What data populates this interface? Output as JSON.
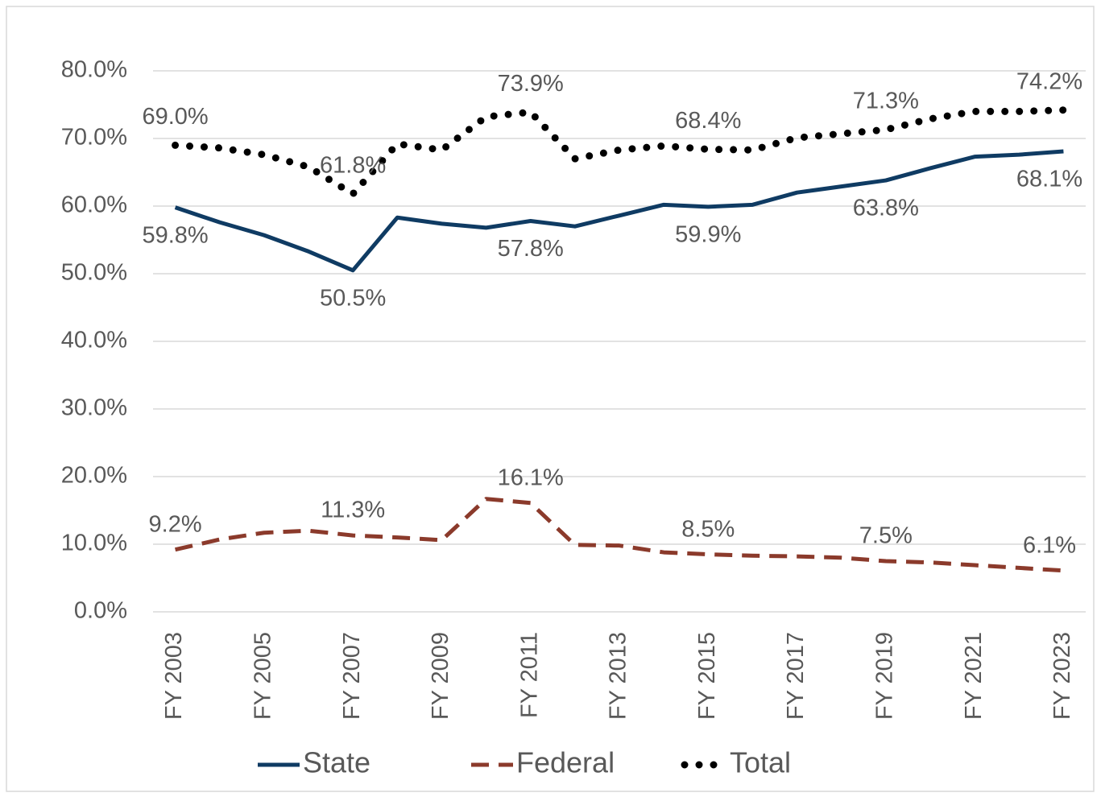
{
  "chart_data": {
    "type": "line",
    "categories": [
      "FY 2003",
      null,
      "FY 2005",
      null,
      "FY 2007",
      null,
      "FY 2009",
      null,
      "FY 2011",
      null,
      "FY 2013",
      null,
      "FY 2015",
      null,
      "FY 2017",
      null,
      "FY 2019",
      null,
      "FY 2021",
      null,
      "FY 2023"
    ],
    "series": [
      {
        "name": "State",
        "color": "#0f3b63",
        "style": "solid",
        "values": [
          59.8,
          57.6,
          55.7,
          53.3,
          50.5,
          58.3,
          57.4,
          56.8,
          57.8,
          57.0,
          58.6,
          60.2,
          59.9,
          60.2,
          62.0,
          62.9,
          63.8,
          65.6,
          67.3,
          67.6,
          68.1
        ],
        "value_labels": [
          "59.8%",
          null,
          null,
          null,
          "50.5%",
          null,
          null,
          null,
          "57.8%",
          null,
          null,
          null,
          "59.9%",
          null,
          null,
          null,
          "63.8%",
          null,
          null,
          null,
          "68.1%"
        ]
      },
      {
        "name": "Federal",
        "color": "#8b3a2b",
        "style": "dashed",
        "values": [
          9.2,
          10.7,
          11.7,
          12.0,
          11.3,
          11.0,
          10.6,
          16.7,
          16.1,
          9.9,
          9.8,
          8.8,
          8.5,
          8.3,
          8.2,
          8.0,
          7.5,
          7.3,
          6.9,
          6.5,
          6.1
        ],
        "value_labels": [
          "9.2%",
          null,
          null,
          null,
          "11.3%",
          null,
          null,
          null,
          "16.1%",
          null,
          null,
          null,
          "8.5%",
          null,
          null,
          null,
          "7.5%",
          null,
          null,
          null,
          "6.1%"
        ]
      },
      {
        "name": "Total",
        "color": "#000000",
        "style": "dotted",
        "values": [
          69.0,
          68.6,
          67.6,
          65.8,
          61.8,
          69.2,
          68.3,
          73.2,
          73.9,
          67.0,
          68.3,
          68.9,
          68.4,
          68.3,
          70.1,
          70.7,
          71.3,
          72.9,
          74.0,
          74.0,
          74.2
        ],
        "value_labels": [
          "69.0%",
          null,
          null,
          null,
          "61.8%",
          null,
          null,
          null,
          "73.9%",
          null,
          null,
          null,
          "68.4%",
          null,
          null,
          null,
          "71.3%",
          null,
          null,
          null,
          "74.2%"
        ]
      }
    ],
    "ylim": [
      0,
      80
    ],
    "yticks": [
      {
        "value": 0,
        "label": "0.0%"
      },
      {
        "value": 10,
        "label": "10.0%"
      },
      {
        "value": 20,
        "label": "20.0%"
      },
      {
        "value": 30,
        "label": "30.0%"
      },
      {
        "value": 40,
        "label": "40.0%"
      },
      {
        "value": 50,
        "label": "50.0%"
      },
      {
        "value": 60,
        "label": "60.0%"
      },
      {
        "value": 70,
        "label": "70.0%"
      },
      {
        "value": 80,
        "label": "80.0%"
      }
    ],
    "grid": true,
    "legend": "bottom"
  }
}
